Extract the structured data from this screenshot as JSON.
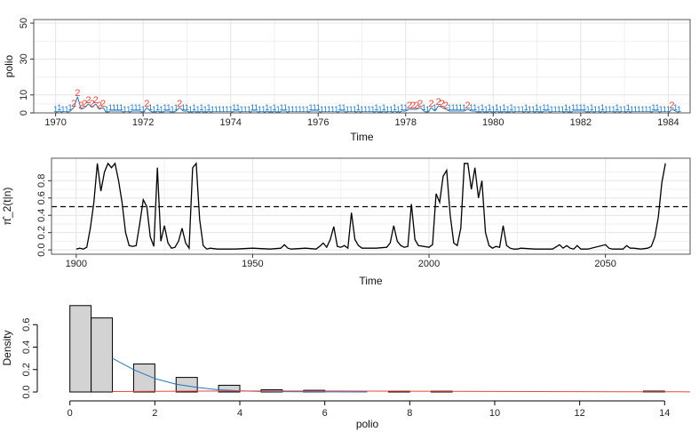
{
  "chart_data": [
    {
      "type": "line",
      "xlabel": "Time",
      "ylabel": "polio",
      "xlim": [
        1969.5,
        1984.5
      ],
      "ylim": [
        0,
        52
      ],
      "xticks": [
        "1970",
        "1972",
        "1974",
        "1976",
        "1978",
        "1980",
        "1982",
        "1984"
      ],
      "yticks": [
        "0",
        "10",
        "30",
        "50"
      ],
      "grid": true,
      "series": [
        {
          "label_blue": "1",
          "label_red": "2",
          "color_blue": "#1f78c1",
          "color_red": "#e8473d",
          "start": 1970,
          "step": 0.0833333,
          "values": [
            0,
            1,
            0,
            0,
            1,
            3,
            9,
            2,
            3,
            5,
            3,
            5,
            2,
            3,
            0,
            1,
            1,
            1,
            1,
            0,
            0,
            1,
            1,
            1,
            0,
            3,
            1,
            0,
            1,
            0,
            1,
            1,
            0,
            1,
            3,
            1,
            1,
            0,
            1,
            0,
            1,
            0,
            1,
            0,
            0,
            0,
            0,
            0,
            0,
            1,
            1,
            0,
            0,
            0,
            1,
            1,
            0,
            0,
            1,
            0,
            1,
            0,
            1,
            1,
            0,
            0,
            0,
            0,
            0,
            0,
            1,
            1,
            1,
            0,
            0,
            0,
            0,
            0,
            1,
            1,
            0,
            0,
            0,
            1,
            0,
            0,
            0,
            0,
            1,
            0,
            1,
            0,
            0,
            1,
            0,
            1,
            1,
            2,
            2,
            2,
            3,
            1,
            0,
            3,
            1,
            4,
            3,
            2,
            1,
            1,
            1,
            1,
            1,
            2,
            1,
            1,
            0,
            1,
            0,
            1,
            0,
            1,
            0,
            1,
            0,
            1,
            0,
            0,
            0,
            1,
            0,
            0,
            1,
            0,
            1,
            1,
            0,
            0,
            0,
            0,
            1,
            0,
            1,
            1,
            1,
            1,
            0,
            1,
            0,
            0,
            1,
            0,
            0,
            0,
            1,
            0,
            0,
            1,
            0,
            0,
            0,
            0,
            0,
            0,
            1,
            1,
            0,
            0,
            0,
            2,
            1,
            0
          ]
        }
      ]
    },
    {
      "type": "line",
      "xlabel": "Time",
      "ylabel": "π̂_2(t|n)",
      "xlim": [
        1893,
        2074
      ],
      "ylim": [
        0,
        1
      ],
      "xticks": [
        "1900",
        "1950",
        "2000",
        "2050"
      ],
      "yticks": [
        "0.0",
        "0.2",
        "0.4",
        "0.6",
        "0.8"
      ],
      "threshold": 0.5,
      "grid": true,
      "series": [
        {
          "color": "#000000",
          "x": [
            1900,
            1901,
            1902,
            1903,
            1904,
            1905,
            1906,
            1907,
            1908,
            1909,
            1910,
            1911,
            1912,
            1913,
            1914,
            1915,
            1916,
            1917,
            1918,
            1919,
            1920,
            1921,
            1922,
            1923,
            1924,
            1925,
            1926,
            1927,
            1928,
            1929,
            1930,
            1931,
            1932,
            1933,
            1934,
            1935,
            1936,
            1937,
            1938,
            1940,
            1945,
            1950,
            1955,
            1958,
            1959,
            1960,
            1961,
            1965,
            1968,
            1969,
            1970,
            1971,
            1972,
            1973,
            1974,
            1975,
            1976,
            1977,
            1978,
            1979,
            1980,
            1981,
            1985,
            1988,
            1989,
            1990,
            1991,
            1992,
            1993,
            1994,
            1995,
            1996,
            1997,
            2000,
            2001,
            2002,
            2003,
            2004,
            2005,
            2006,
            2007,
            2008,
            2009,
            2010,
            2011,
            2012,
            2013,
            2014,
            2015,
            2016,
            2017,
            2018,
            2019,
            2020,
            2021,
            2022,
            2023,
            2024,
            2025,
            2026,
            2030,
            2035,
            2037,
            2038,
            2039,
            2040,
            2041,
            2042,
            2043,
            2045,
            2050,
            2051,
            2052,
            2053,
            2055,
            2056,
            2057,
            2058,
            2060,
            2062,
            2063,
            2064,
            2065,
            2066,
            2067
          ],
          "y": [
            0.01,
            0.02,
            0.01,
            0.03,
            0.25,
            0.55,
            1.0,
            0.68,
            0.9,
            1.0,
            0.95,
            1.0,
            0.8,
            0.55,
            0.2,
            0.05,
            0.04,
            0.05,
            0.3,
            0.58,
            0.5,
            0.15,
            0.04,
            0.95,
            0.1,
            0.28,
            0.08,
            0.02,
            0.03,
            0.1,
            0.25,
            0.08,
            0.02,
            0.95,
            1.0,
            0.35,
            0.05,
            0.01,
            0.02,
            0.01,
            0.01,
            0.02,
            0.01,
            0.02,
            0.06,
            0.02,
            0.01,
            0.02,
            0.01,
            0.04,
            0.08,
            0.03,
            0.12,
            0.27,
            0.04,
            0.03,
            0.05,
            0.02,
            0.43,
            0.12,
            0.05,
            0.02,
            0.02,
            0.03,
            0.08,
            0.28,
            0.1,
            0.05,
            0.03,
            0.04,
            0.53,
            0.12,
            0.05,
            0.03,
            0.06,
            0.65,
            0.55,
            0.85,
            0.92,
            0.4,
            0.08,
            0.05,
            0.25,
            1.0,
            1.0,
            0.7,
            0.95,
            0.6,
            0.8,
            0.2,
            0.05,
            0.02,
            0.04,
            0.03,
            0.28,
            0.05,
            0.02,
            0.01,
            0.01,
            0.02,
            0.01,
            0.01,
            0.06,
            0.02,
            0.05,
            0.02,
            0.01,
            0.05,
            0.01,
            0.01,
            0.06,
            0.02,
            0.01,
            0.01,
            0.01,
            0.05,
            0.02,
            0.02,
            0.01,
            0.02,
            0.04,
            0.15,
            0.38,
            0.78,
            1.0
          ]
        }
      ]
    },
    {
      "type": "bar",
      "xlabel": "polio",
      "ylabel": "Density",
      "xlim": [
        -0.6,
        14.6
      ],
      "ylim": [
        0,
        0.8
      ],
      "xticks": [
        "0",
        "2",
        "4",
        "6",
        "8",
        "10",
        "12",
        "14"
      ],
      "yticks": [
        "0.0",
        "0.2",
        "0.4",
        "0.6"
      ],
      "grid": false,
      "bins": [
        {
          "x0": 0.0,
          "x1": 0.5,
          "value": 0.77
        },
        {
          "x0": 0.5,
          "x1": 1.0,
          "value": 0.66
        },
        {
          "x0": 1.5,
          "x1": 2.0,
          "value": 0.25
        },
        {
          "x0": 2.5,
          "x1": 3.0,
          "value": 0.13
        },
        {
          "x0": 3.5,
          "x1": 4.0,
          "value": 0.06
        },
        {
          "x0": 4.5,
          "x1": 5.0,
          "value": 0.02
        },
        {
          "x0": 5.5,
          "x1": 6.0,
          "value": 0.015
        },
        {
          "x0": 7.5,
          "x1": 8.0,
          "value": 0.008
        },
        {
          "x0": 8.5,
          "x1": 9.0,
          "value": 0.008
        },
        {
          "x0": 13.5,
          "x1": 14.0,
          "value": 0.008
        }
      ],
      "curves": [
        {
          "color": "#1f78c1",
          "x": [
            1.0,
            1.5,
            2.0,
            2.5,
            3.0,
            3.5,
            4.0,
            4.5,
            5.0,
            6.0,
            7.0
          ],
          "y": [
            0.3,
            0.2,
            0.12,
            0.07,
            0.04,
            0.02,
            0.01,
            0.005,
            0.003,
            0.001,
            0.0
          ]
        },
        {
          "color": "#e8473d",
          "x": [
            1.0,
            2.0,
            3.0,
            4.0,
            5.0,
            6.0,
            7.0,
            8.0,
            9.0,
            10.0,
            11.0,
            12.0,
            13.0,
            14.0,
            14.6
          ],
          "y": [
            0.004,
            0.006,
            0.008,
            0.009,
            0.009,
            0.009,
            0.008,
            0.007,
            0.006,
            0.005,
            0.004,
            0.003,
            0.002,
            0.002,
            0.001
          ]
        }
      ]
    }
  ]
}
